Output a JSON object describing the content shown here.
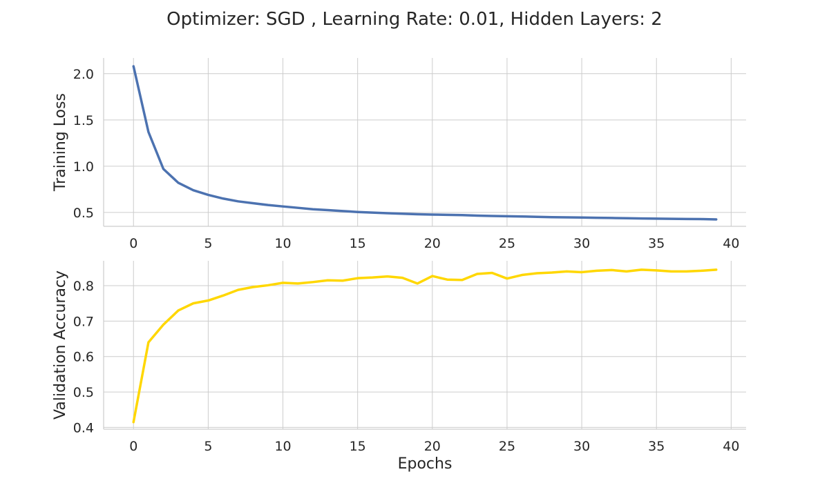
{
  "title": "Optimizer: SGD , Learning Rate: 0.01, Hidden Layers: 2",
  "colors": {
    "loss": "#4c72b0",
    "accuracy": "#ffd700"
  },
  "chart_data": [
    {
      "type": "line",
      "title": "Optimizer: SGD , Learning Rate: 0.01, Hidden Layers: 2",
      "xlabel": "",
      "ylabel": "Training Loss",
      "xlim": [
        -2,
        41
      ],
      "ylim": [
        0.35,
        2.17
      ],
      "xticks": [
        0,
        5,
        10,
        15,
        20,
        25,
        30,
        35,
        40
      ],
      "yticks": [
        0.5,
        1.0,
        1.5,
        2.0
      ],
      "ytick_labels": [
        "0.5",
        "1.0",
        "1.5",
        "2.0"
      ],
      "grid": true,
      "x": [
        0,
        1,
        2,
        3,
        4,
        5,
        6,
        7,
        8,
        9,
        10,
        11,
        12,
        13,
        14,
        15,
        16,
        17,
        18,
        19,
        20,
        21,
        22,
        23,
        24,
        25,
        26,
        27,
        28,
        29,
        30,
        31,
        32,
        33,
        34,
        35,
        36,
        37,
        38,
        39
      ],
      "series": [
        {
          "values": [
            2.08,
            1.37,
            0.97,
            0.82,
            0.74,
            0.69,
            0.65,
            0.62,
            0.6,
            0.58,
            0.565,
            0.55,
            0.535,
            0.525,
            0.515,
            0.505,
            0.498,
            0.492,
            0.486,
            0.481,
            0.477,
            0.474,
            0.471,
            0.466,
            0.462,
            0.459,
            0.456,
            0.453,
            0.449,
            0.447,
            0.445,
            0.442,
            0.44,
            0.438,
            0.435,
            0.433,
            0.431,
            0.429,
            0.428,
            0.425
          ]
        }
      ]
    },
    {
      "type": "line",
      "xlabel": "Epochs",
      "ylabel": "Validation Accuracy",
      "xlim": [
        -2,
        41
      ],
      "ylim": [
        0.395,
        0.87
      ],
      "xticks": [
        0,
        5,
        10,
        15,
        20,
        25,
        30,
        35,
        40
      ],
      "yticks": [
        0.4,
        0.5,
        0.6,
        0.7,
        0.8
      ],
      "ytick_labels": [
        "0.4",
        "0.5",
        "0.6",
        "0.7",
        "0.8"
      ],
      "grid": true,
      "x": [
        0,
        1,
        2,
        3,
        4,
        5,
        6,
        7,
        8,
        9,
        10,
        11,
        12,
        13,
        14,
        15,
        16,
        17,
        18,
        19,
        20,
        21,
        22,
        23,
        24,
        25,
        26,
        27,
        28,
        29,
        30,
        31,
        32,
        33,
        34,
        35,
        36,
        37,
        38,
        39
      ],
      "series": [
        {
          "values": [
            0.415,
            0.64,
            0.69,
            0.73,
            0.75,
            0.758,
            0.772,
            0.788,
            0.796,
            0.801,
            0.808,
            0.806,
            0.81,
            0.815,
            0.814,
            0.821,
            0.823,
            0.826,
            0.822,
            0.806,
            0.827,
            0.817,
            0.816,
            0.833,
            0.836,
            0.82,
            0.83,
            0.835,
            0.837,
            0.84,
            0.838,
            0.842,
            0.844,
            0.84,
            0.845,
            0.843,
            0.84,
            0.84,
            0.842,
            0.845
          ]
        }
      ]
    }
  ]
}
